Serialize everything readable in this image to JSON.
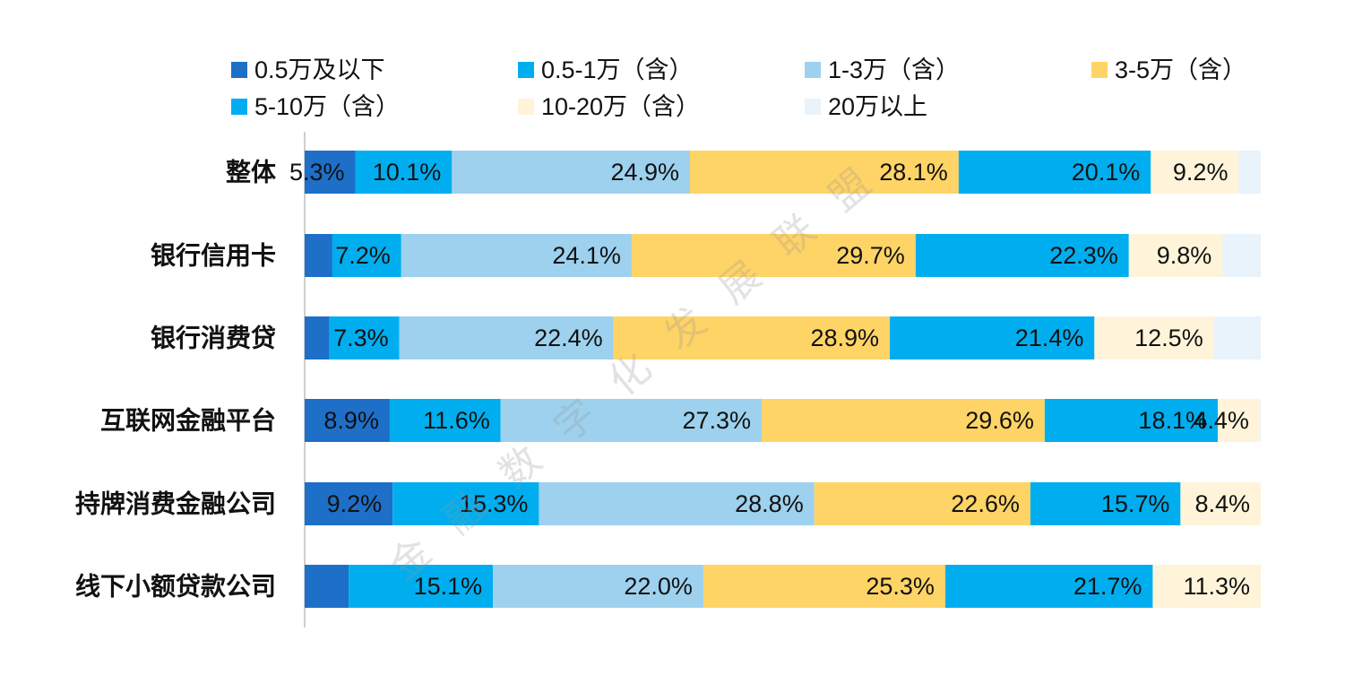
{
  "watermark": "金融数字化发展联盟",
  "chart_data": {
    "type": "bar",
    "orientation": "horizontal",
    "stacked": true,
    "percent_stacked": true,
    "legend_position": "top",
    "categories": [
      "整体",
      "银行信用卡",
      "银行消费贷",
      "互联网金融平台",
      "持牌消费金融公司",
      "线下小额贷款公司"
    ],
    "series": [
      {
        "name": "0.5万及以下",
        "color": "#1E6FC8",
        "values": [
          5.3,
          2.9,
          2.6,
          8.9,
          9.2,
          4.6
        ],
        "labels": [
          "5.3%",
          "",
          "",
          "8.9%",
          "9.2%",
          ""
        ]
      },
      {
        "name": "0.5-1万（含）",
        "color": "#00AEEF",
        "values": [
          10.1,
          7.2,
          7.3,
          11.6,
          15.3,
          15.1
        ],
        "labels": [
          "10.1%",
          "7.2%",
          "7.3%",
          "11.6%",
          "15.3%",
          "15.1%"
        ]
      },
      {
        "name": "1-3万（含）",
        "color": "#9DD1EE",
        "values": [
          24.9,
          24.1,
          22.4,
          27.3,
          28.8,
          22.0
        ],
        "labels": [
          "24.9%",
          "24.1%",
          "22.4%",
          "27.3%",
          "28.8%",
          "22.0%"
        ]
      },
      {
        "name": "3-5万（含）",
        "color": "#FFD466",
        "values": [
          28.1,
          29.7,
          28.9,
          29.6,
          22.6,
          25.3
        ],
        "labels": [
          "28.1%",
          "29.7%",
          "28.9%",
          "29.6%",
          "22.6%",
          "25.3%"
        ]
      },
      {
        "name": "5-10万（含）",
        "color": "#00AEEF",
        "values": [
          20.1,
          22.3,
          21.4,
          18.1,
          15.7,
          21.7
        ],
        "labels": [
          "20.1%",
          "22.3%",
          "21.4%",
          "18.1%",
          "15.7%",
          "21.7%"
        ]
      },
      {
        "name": "10-20万（含）",
        "color": "#FFF4D9",
        "values": [
          9.2,
          9.8,
          12.5,
          4.4,
          8.4,
          11.3
        ],
        "labels": [
          "9.2%",
          "9.8%",
          "12.5%",
          "4.4%",
          "8.4%",
          "11.3%"
        ]
      },
      {
        "name": "20万以上",
        "color": "#E8F3FB",
        "values": [
          2.3,
          4.0,
          4.9,
          0.1,
          0.0,
          0.0
        ],
        "labels": [
          "",
          "",
          "",
          "",
          "",
          ""
        ]
      }
    ],
    "xlim": [
      0,
      100
    ],
    "grid": false
  }
}
